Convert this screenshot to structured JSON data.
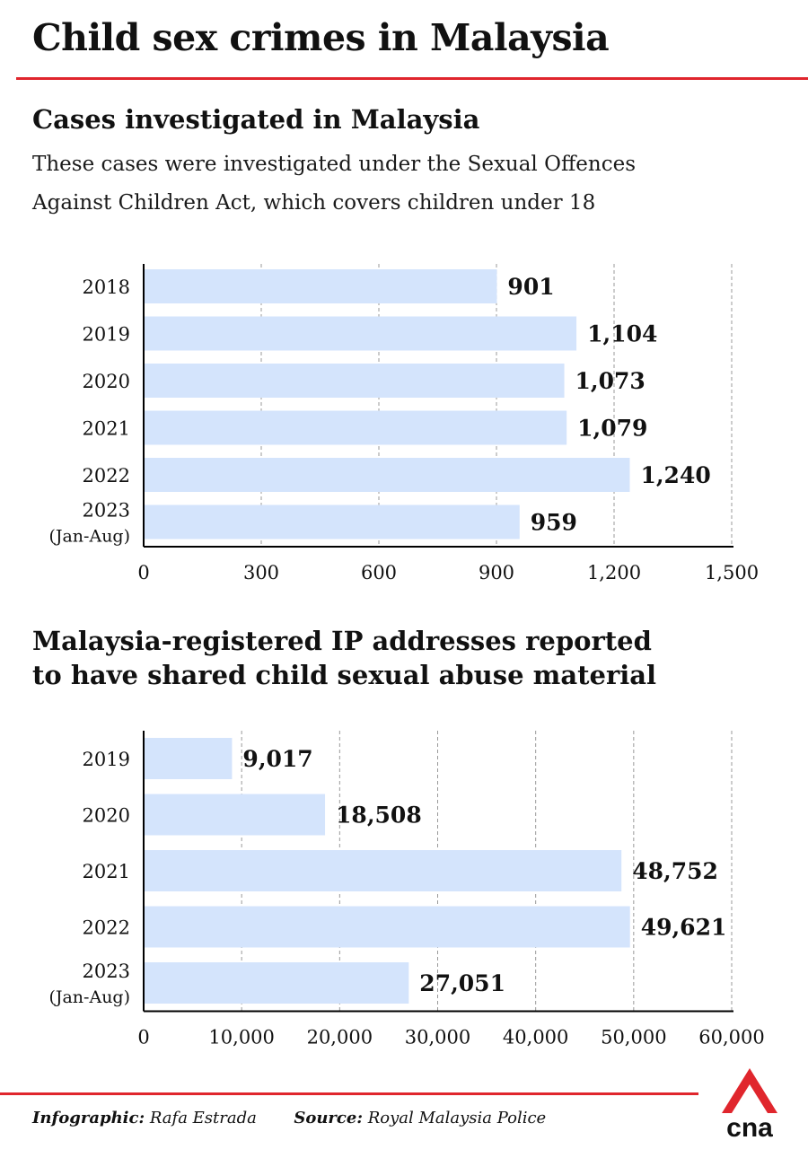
{
  "title": "Child sex crimes in Malaysia",
  "colors": {
    "accent": "#e0262d",
    "bar": "#d4e4fc",
    "grid": "#999999",
    "axis": "#000000"
  },
  "chart_data": [
    {
      "type": "bar",
      "orientation": "horizontal",
      "title": "Cases investigated in Malaysia",
      "subtitle_lines": [
        "These cases were investigated under the Sexual Offences",
        "Against Children Act, which covers children under 18"
      ],
      "categories": [
        [
          "2018"
        ],
        [
          "2019"
        ],
        [
          "2020"
        ],
        [
          "2021"
        ],
        [
          "2022"
        ],
        [
          "2023",
          "(Jan-Aug)"
        ]
      ],
      "values": [
        901,
        1104,
        1073,
        1079,
        1240,
        959
      ],
      "value_labels": [
        "901",
        "1,104",
        "1,073",
        "1,079",
        "1,240",
        "959"
      ],
      "xlim": [
        0,
        1500
      ],
      "xticks": [
        0,
        300,
        600,
        900,
        1200,
        1500
      ],
      "xtick_labels": [
        "0",
        "300",
        "600",
        "900",
        "1,200",
        "1,500"
      ],
      "grid": true
    },
    {
      "type": "bar",
      "orientation": "horizontal",
      "title_lines": [
        "Malaysia-registered IP addresses reported",
        "to have shared child sexual abuse material"
      ],
      "categories": [
        [
          "2019"
        ],
        [
          "2020"
        ],
        [
          "2021"
        ],
        [
          "2022"
        ],
        [
          "2023",
          "(Jan-Aug)"
        ]
      ],
      "values": [
        9017,
        18508,
        48752,
        49621,
        27051
      ],
      "value_labels": [
        "9,017",
        "18,508",
        "48,752",
        "49,621",
        "27,051"
      ],
      "xlim": [
        0,
        60000
      ],
      "xticks": [
        0,
        10000,
        20000,
        30000,
        40000,
        50000,
        60000
      ],
      "xtick_labels": [
        "0",
        "10,000",
        "20,000",
        "30,000",
        "40,000",
        "50,000",
        "60,000"
      ],
      "grid": true
    }
  ],
  "footer": {
    "infographic_label": "Infographic:",
    "infographic_value": "Rafa Estrada",
    "source_label": "Source:",
    "source_value": "Royal Malaysia Police"
  },
  "logo": {
    "text": "cna",
    "icon": "cna-logo-icon"
  }
}
